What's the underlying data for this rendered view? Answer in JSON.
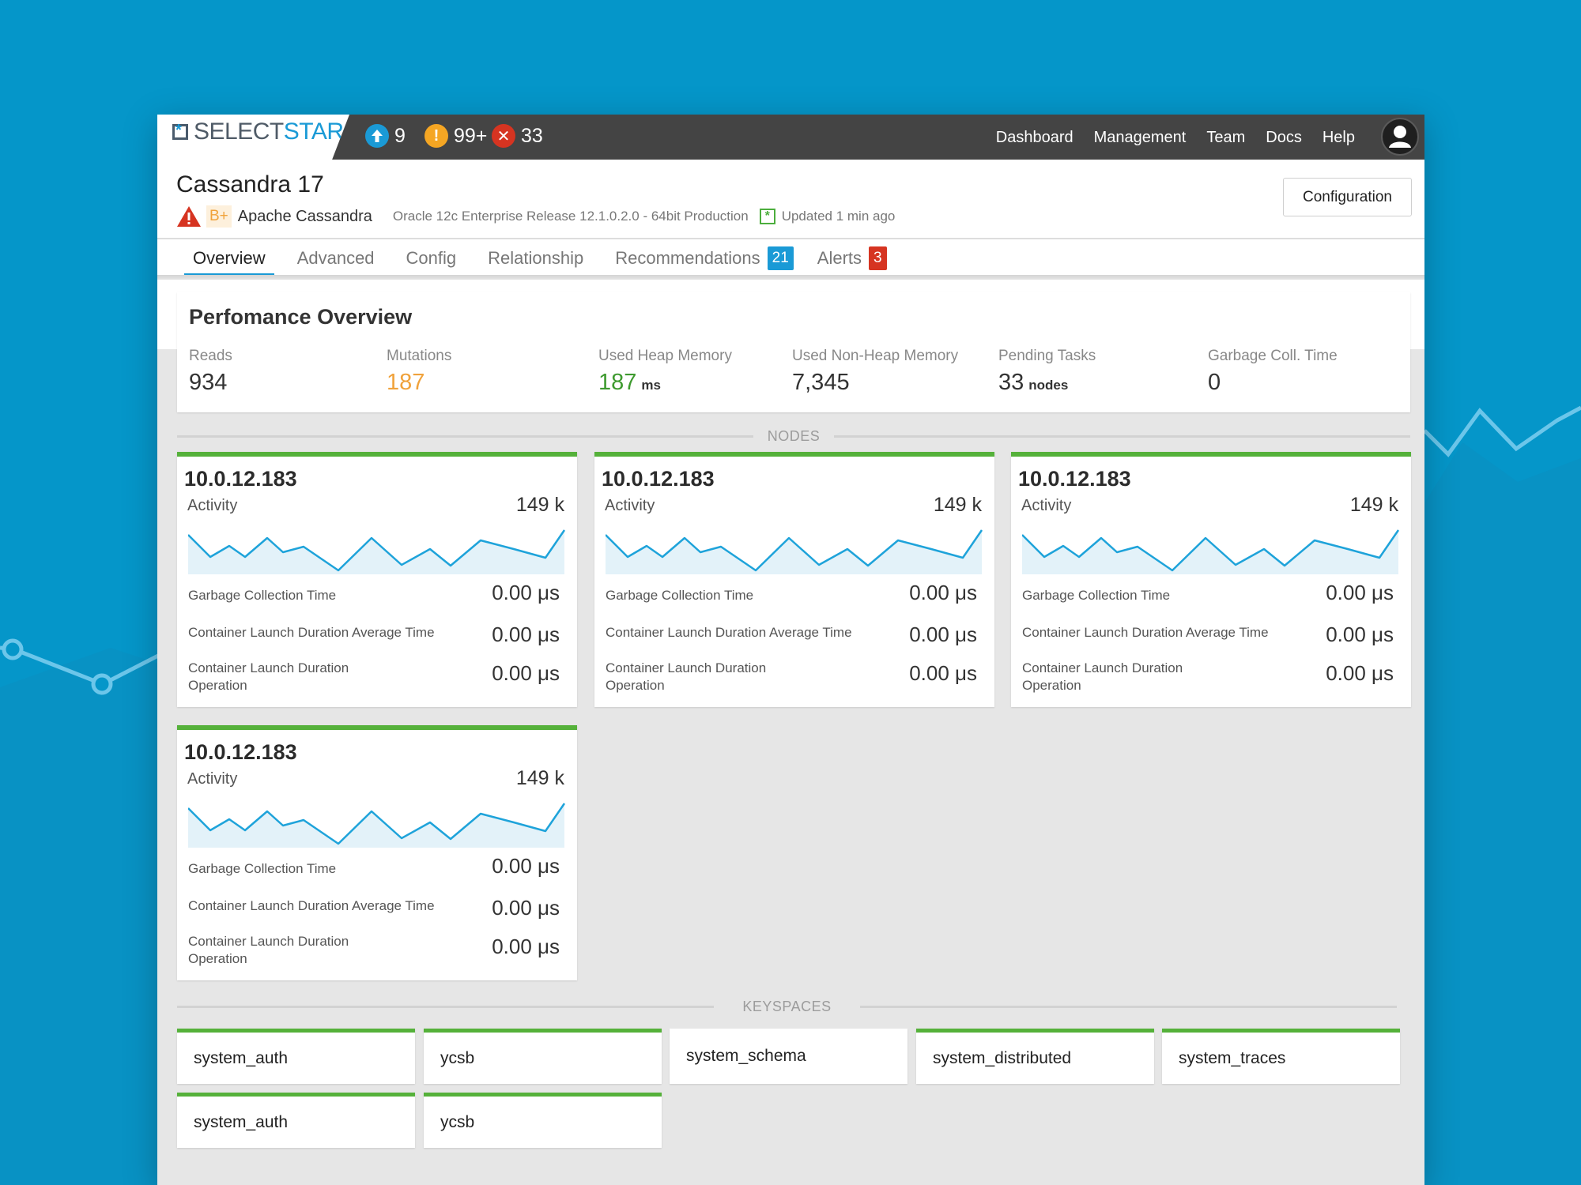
{
  "app": {
    "logo": {
      "part1": "SELECT",
      "part2": "STAR"
    },
    "status": [
      {
        "icon": "arrow-up-icon",
        "count": "9",
        "color": "#1a9ad6"
      },
      {
        "icon": "exclamation-icon",
        "count": "99+",
        "color": "#f5a623"
      },
      {
        "icon": "close-icon",
        "count": "33",
        "color": "#d63421"
      }
    ],
    "nav": [
      "Dashboard",
      "Management",
      "Team",
      "Docs",
      "Help"
    ]
  },
  "header": {
    "title": "Cassandra 17",
    "grade": "B+",
    "db_type": "Apache Cassandra",
    "version": "Oracle 12c Enterprise Release 12.1.0.2.0 - 64bit Production",
    "updated": "Updated 1 min ago",
    "config_button": "Configuration"
  },
  "tabs": [
    {
      "label": "Overview",
      "active": true
    },
    {
      "label": "Advanced"
    },
    {
      "label": "Config"
    },
    {
      "label": "Relationship"
    },
    {
      "label": "Recommendations",
      "badge": "21",
      "badge_color": "#1a9ad6"
    },
    {
      "label": "Alerts",
      "badge": "3",
      "badge_color": "#d63421"
    }
  ],
  "performance": {
    "title": "Perfomance Overview",
    "metrics": [
      {
        "label": "Reads",
        "value": "934",
        "unit": "",
        "color": "#333333"
      },
      {
        "label": "Mutations",
        "value": "187",
        "unit": "",
        "color": "#f0a23b"
      },
      {
        "label": "Used Heap Memory",
        "value": "187",
        "unit": "ms",
        "color": "#3e9a2f"
      },
      {
        "label": "Used Non-Heap Memory",
        "value": "7,345",
        "unit": "",
        "color": "#333333"
      },
      {
        "label": "Pending Tasks",
        "value": "33",
        "unit": "nodes",
        "color": "#333333"
      },
      {
        "label": "Garbage Coll. Time",
        "value": "0",
        "unit": "",
        "color": "#333333"
      }
    ]
  },
  "nodes_label": "NODES",
  "nodes": [
    {
      "ip": "10.0.12.183",
      "activity_label": "Activity",
      "activity_value": "149 k",
      "rows": [
        {
          "label": "Garbage Collection Time",
          "value": "0.00 μs"
        },
        {
          "label": "Container Launch Duration Average Time",
          "value": "0.00 μs"
        },
        {
          "label": "Container Launch Duration Operation",
          "value": "0.00 μs"
        }
      ]
    },
    {
      "ip": "10.0.12.183",
      "activity_label": "Activity",
      "activity_value": "149 k",
      "rows": [
        {
          "label": "Garbage Collection Time",
          "value": "0.00 μs"
        },
        {
          "label": "Container Launch Duration Average Time",
          "value": "0.00 μs"
        },
        {
          "label": "Container Launch Duration Operation",
          "value": "0.00 μs"
        }
      ]
    },
    {
      "ip": "10.0.12.183",
      "activity_label": "Activity",
      "activity_value": "149 k",
      "rows": [
        {
          "label": "Garbage Collection Time",
          "value": "0.00 μs"
        },
        {
          "label": "Container Launch Duration Average Time",
          "value": "0.00 μs"
        },
        {
          "label": "Container Launch Duration Operation",
          "value": "0.00 μs"
        }
      ]
    },
    {
      "ip": "10.0.12.183",
      "activity_label": "Activity",
      "activity_value": "149 k",
      "rows": [
        {
          "label": "Garbage Collection Time",
          "value": "0.00 μs"
        },
        {
          "label": "Container Launch Duration Average Time",
          "value": "0.00 μs"
        },
        {
          "label": "Container Launch Duration Operation",
          "value": "0.00 μs"
        }
      ]
    }
  ],
  "keyspaces_label": "KEYSPACES",
  "keyspaces": [
    {
      "name": "system_auth",
      "accent": true
    },
    {
      "name": "ycsb",
      "accent": true
    },
    {
      "name": "system_schema",
      "accent": false
    },
    {
      "name": "system_distributed",
      "accent": true
    },
    {
      "name": "system_traces",
      "accent": true
    },
    {
      "name": "system_auth",
      "accent": true
    },
    {
      "name": "ycsb",
      "accent": true
    }
  ],
  "colors": {
    "accent": "#1a9ad6",
    "healthy": "#55b13a",
    "background": "#0596c9"
  }
}
